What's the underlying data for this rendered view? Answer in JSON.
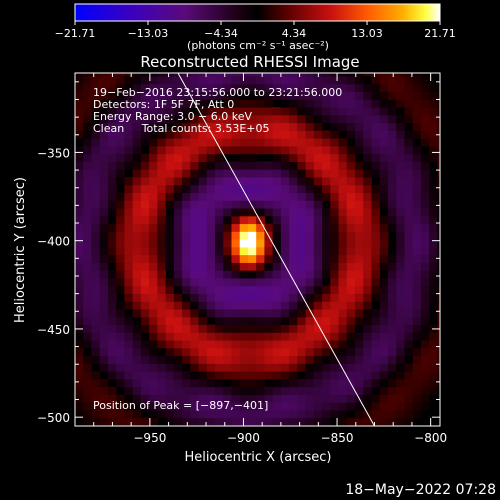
{
  "chart_data": {
    "type": "heatmap",
    "title": "Reconstructed RHESSI Image",
    "xlabel": "Heliocentric X (arcsec)",
    "ylabel": "Heliocentric Y (arcsec)",
    "xlim": [
      -990,
      -795
    ],
    "ylim": [
      -505,
      -305
    ],
    "x_ticks": [
      -950,
      -900,
      -850,
      -800
    ],
    "y_ticks": [
      -500,
      -450,
      -400,
      -350
    ],
    "x_tick_labels": [
      "−950",
      "−900",
      "−850",
      "−800"
    ],
    "y_tick_labels": [
      "−500",
      "−450",
      "−400",
      "−350"
    ],
    "colorbar": {
      "min": -21.71,
      "max": 21.71,
      "tick_labels": [
        "−21.71",
        "−13.03",
        "−4.34",
        "4.34",
        "13.03",
        "21.71"
      ],
      "ticks": [
        -21.71,
        -13.03,
        -4.34,
        4.34,
        13.03,
        21.71
      ],
      "unit_label": "(photons cm⁻² s⁻¹ asec⁻²)",
      "colormap": [
        "#0000ff",
        "#3a00c0",
        "#5a0a7a",
        "#1a0010",
        "#000000",
        "#5a0000",
        "#c81010",
        "#ff5a00",
        "#ffb000",
        "#ffff40",
        "#ffffff"
      ]
    },
    "annotations": {
      "time": "19−Feb−2016 23:15:56.000 to 23:21:56.000",
      "detectors": "Detectors: 1F 5F 7F, Att 0",
      "energy": "Energy Range: 3.0 − 6.0 keV",
      "clean": "Clean     Total counts: 3.53E+05",
      "peak": "Position of Peak = [−897,−401]"
    },
    "peak": [
      -897,
      -401
    ],
    "limb_line": [
      [
        -935,
        -305
      ],
      [
        -830,
        -505
      ]
    ]
  },
  "footer_timestamp": "18−May−2022 07:28"
}
